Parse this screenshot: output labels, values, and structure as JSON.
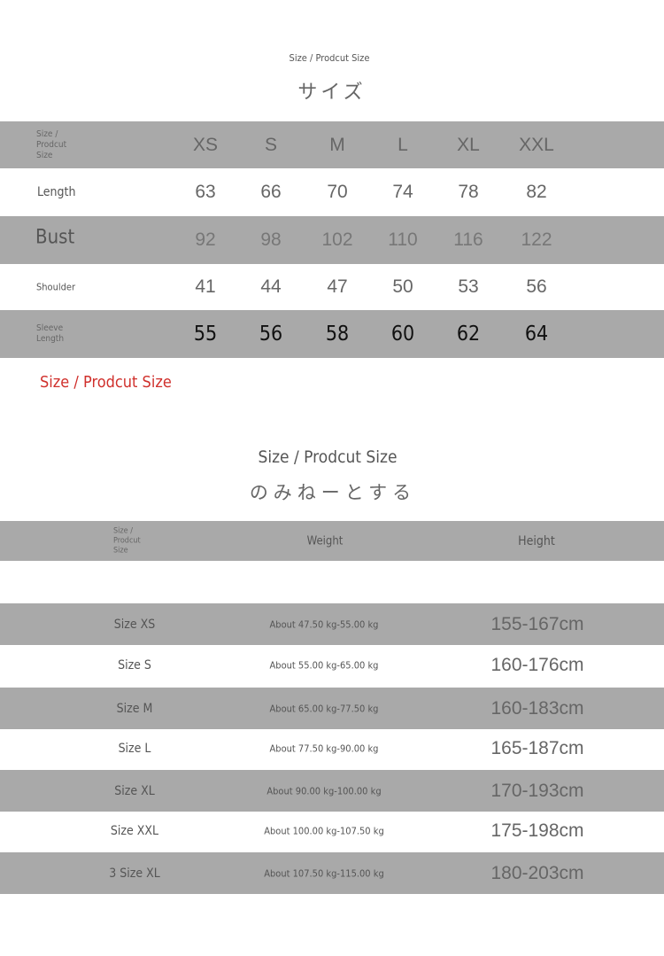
{
  "section1": {
    "subtitle": "Size / Prodcut Size",
    "title": "サイズ",
    "header": {
      "label": [
        "Size /",
        "Prodcut",
        "Size"
      ],
      "sizes": [
        "XS",
        "S",
        "M",
        "L",
        "XL",
        "XXL"
      ]
    },
    "rows": [
      {
        "label": "Length",
        "values": [
          "63",
          "66",
          "70",
          "74",
          "78",
          "82"
        ]
      },
      {
        "label": "Bust",
        "values": [
          "92",
          "98",
          "102",
          "110",
          "116",
          "122"
        ]
      },
      {
        "label": "Shoulder",
        "values": [
          "41",
          "44",
          "47",
          "50",
          "53",
          "56"
        ]
      },
      {
        "label": [
          "Sleeve",
          "Length"
        ],
        "values": [
          "55",
          "56",
          "58",
          "60",
          "62",
          "64"
        ]
      }
    ],
    "note": "Size / Prodcut Size"
  },
  "section2": {
    "subtitle": "Size / Prodcut Size",
    "title": "のみねーとする",
    "header": {
      "label": [
        "Size /",
        "Prodcut",
        "Size"
      ],
      "weight": "Weight",
      "height": "Height"
    },
    "rows": [
      {
        "size": "Size XS",
        "weight": "About 47.50 kg-55.00 kg",
        "height": "155-167cm"
      },
      {
        "size": "Size S",
        "weight": "About 55.00 kg-65.00 kg",
        "height": "160-176cm"
      },
      {
        "size": "Size M",
        "weight": "About 65.00 kg-77.50 kg",
        "height": "160-183cm"
      },
      {
        "size": "Size L",
        "weight": "About 77.50 kg-90.00 kg",
        "height": "165-187cm"
      },
      {
        "size": "Size XL",
        "weight": "About 90.00 kg-100.00 kg",
        "height": "170-193cm"
      },
      {
        "size": "Size XXL",
        "weight": "About 100.00 kg-107.50 kg",
        "height": "175-198cm"
      },
      {
        "size": "3 Size XL",
        "weight": "About 107.50 kg-115.00 kg",
        "height": "180-203cm"
      }
    ]
  },
  "colors": {
    "band": "#a9a9a9",
    "note": "#d0302c",
    "text": "#555555"
  }
}
